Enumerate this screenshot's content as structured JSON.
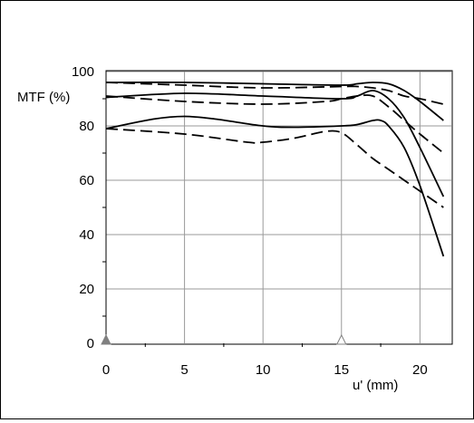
{
  "chart_data": {
    "type": "line",
    "xlabel": "u' (mm)",
    "ylabel": "MTF (%)",
    "xlim": [
      0,
      22
    ],
    "ylim": [
      0,
      100
    ],
    "x_ticks": [
      0,
      5,
      10,
      15,
      20
    ],
    "y_ticks": [
      0,
      20,
      40,
      60,
      80,
      100
    ],
    "grid": true,
    "markers": [
      {
        "x": 0,
        "y": 0,
        "style": "filled",
        "color": "#808080"
      },
      {
        "x": 15,
        "y": 0,
        "style": "outline",
        "color": "#808080"
      }
    ],
    "series": [
      {
        "style": "solid",
        "x": [
          0,
          5,
          10,
          15,
          16,
          17,
          18,
          19,
          20,
          21.5
        ],
        "y": [
          96,
          96,
          95.5,
          95,
          95.5,
          96,
          95.5,
          93,
          89,
          82
        ]
      },
      {
        "style": "dashed",
        "x": [
          0,
          5,
          10,
          15,
          16,
          17,
          18,
          19,
          20,
          21.5
        ],
        "y": [
          96,
          95,
          94,
          94.5,
          94.5,
          94,
          93,
          91,
          90,
          88
        ]
      },
      {
        "style": "solid",
        "x": [
          0,
          5,
          10,
          15,
          16,
          17,
          18,
          19,
          20,
          21.5
        ],
        "y": [
          90.5,
          92,
          91,
          90,
          91,
          93,
          90,
          83,
          72,
          54
        ]
      },
      {
        "style": "dashed",
        "x": [
          0,
          5,
          10,
          14,
          15,
          16,
          17,
          18,
          19,
          20,
          21.5
        ],
        "y": [
          91,
          89,
          88,
          89,
          90,
          91,
          91,
          87,
          82,
          77,
          70
        ]
      },
      {
        "style": "solid",
        "x": [
          0,
          3,
          5,
          7,
          10,
          12,
          15,
          16,
          17,
          17.5,
          18,
          19,
          20,
          21.5
        ],
        "y": [
          79,
          82.5,
          83.5,
          82.5,
          80,
          79.5,
          80,
          80.5,
          82,
          82,
          80,
          72,
          58,
          32
        ]
      },
      {
        "style": "dashed",
        "x": [
          0,
          5,
          9,
          10,
          12,
          14,
          15,
          16,
          17,
          18,
          19,
          20,
          21.5
        ],
        "y": [
          79,
          77,
          74,
          74,
          75.5,
          78,
          77.5,
          73,
          68,
          64,
          60,
          56,
          50
        ]
      }
    ]
  }
}
